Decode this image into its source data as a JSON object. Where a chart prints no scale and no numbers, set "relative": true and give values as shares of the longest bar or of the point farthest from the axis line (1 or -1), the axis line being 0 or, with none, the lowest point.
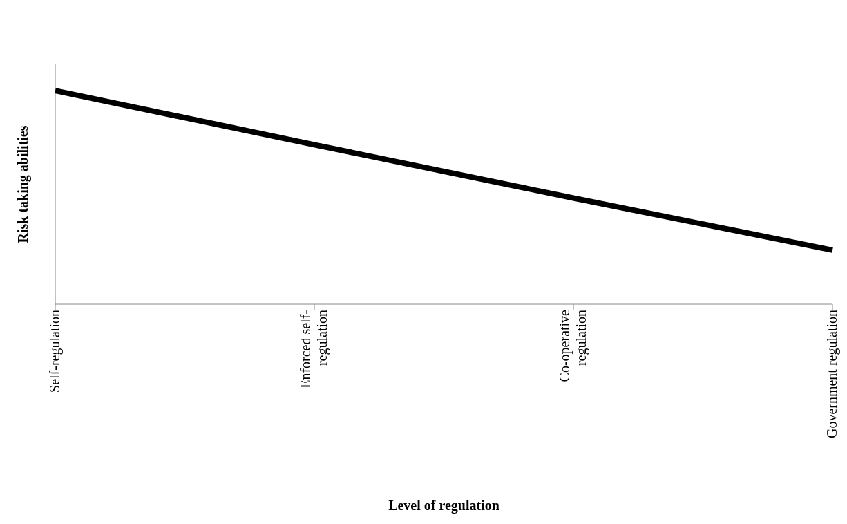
{
  "chart_data": {
    "type": "line",
    "relative": true,
    "xlabel": "Level of regulation",
    "ylabel": "Risk taking abilities",
    "categories": [
      "Self-regulation",
      "Enforced self-regulation",
      "Co-operative regulation",
      "Government regulation"
    ],
    "series": [
      {
        "color": "#000000",
        "values": [
          1,
          0.747,
          0.497,
          0.253
        ]
      }
    ],
    "marker": "none",
    "line_style": "solid"
  }
}
